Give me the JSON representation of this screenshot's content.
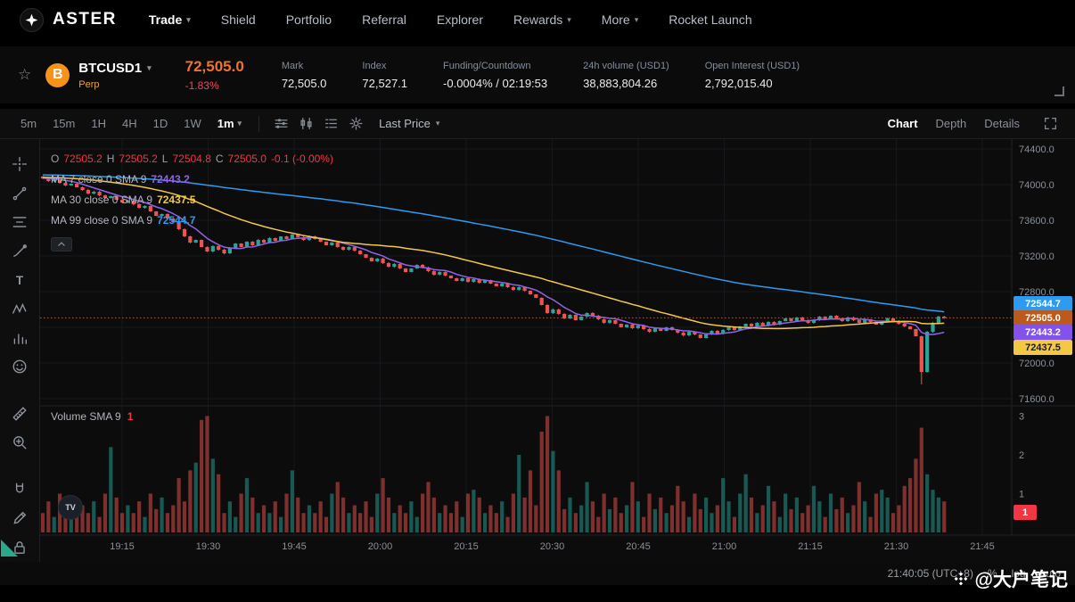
{
  "nav": {
    "brand": "ASTER",
    "items": [
      {
        "label": "Trade",
        "active": true,
        "caret": true
      },
      {
        "label": "Shield"
      },
      {
        "label": "Portfolio"
      },
      {
        "label": "Referral"
      },
      {
        "label": "Explorer"
      },
      {
        "label": "Rewards",
        "caret": true
      },
      {
        "label": "More",
        "caret": true
      },
      {
        "label": "Rocket Launch"
      }
    ]
  },
  "ticker": {
    "symbol": "BTCUSD1",
    "contract_type": "Perp",
    "last_price": "72,505.0",
    "change": "-1.83%",
    "stats": [
      {
        "label": "Mark",
        "value": "72,505.0"
      },
      {
        "label": "Index",
        "value": "72,527.1"
      },
      {
        "label": "Funding/Countdown",
        "value": "-0.0004% / 02:19:53"
      },
      {
        "label": "24h volume (USD1)",
        "value": "38,883,804.26"
      },
      {
        "label": "Open Interest (USD1)",
        "value": "2,792,015.40"
      }
    ]
  },
  "toolbar": {
    "timeframes": [
      "5m",
      "15m",
      "1H",
      "4H",
      "1D",
      "1W"
    ],
    "active_timeframe": "1m",
    "price_mode": "Last Price",
    "views": [
      "Chart",
      "Depth",
      "Details"
    ],
    "active_view": "Chart"
  },
  "tools": {
    "groups": [
      [
        "crosshair",
        "trendline",
        "fib-retracement",
        "brush",
        "text",
        "pattern",
        "forecast",
        "emoji"
      ],
      [
        "ruler",
        "zoom-in"
      ],
      [
        "magnet",
        "draw",
        "lock"
      ]
    ]
  },
  "legend": {
    "ohlc": [
      {
        "k": "O",
        "v": "72505.2"
      },
      {
        "k": "H",
        "v": "72505.2"
      },
      {
        "k": "L",
        "v": "72504.8"
      },
      {
        "k": "C",
        "v": "72505.0"
      }
    ],
    "change": "-0.1 (-0.00%)",
    "mas": [
      {
        "label": "MA 7 close 0 SMA 9",
        "value": "72443.2",
        "color": "#8e63e8"
      },
      {
        "label": "MA 30 close 0 SMA 9",
        "value": "72437.5",
        "color": "#f3c846"
      },
      {
        "label": "MA 99 close 0 SMA 9",
        "value": "72544.7",
        "color": "#2d9bf0"
      }
    ]
  },
  "volume_legend": {
    "label": "Volume SMA 9",
    "value": "1"
  },
  "axis": {
    "price_chips": [
      {
        "value": "72544.7",
        "color": "#2d9bf0",
        "text": "#ffffff"
      },
      {
        "value": "72505.0",
        "color": "#bb5a1f",
        "text": "#ffffff"
      },
      {
        "value": "72443.2",
        "color": "#8153e8",
        "text": "#ffffff"
      },
      {
        "value": "72437.5",
        "color": "#f3c846",
        "text": "#1b1b1b"
      }
    ],
    "volume_chip": {
      "value": "1"
    }
  },
  "footer": {
    "clock": "21:40:05 (UTC+8)",
    "percent": "%",
    "log": "log",
    "auto": "auto"
  },
  "watermark": {
    "text": "@大户笔记"
  },
  "chart_data": {
    "type": "candlestick",
    "symbol": "BTCUSD1",
    "interval": "1m",
    "time_start": "19:01",
    "time_end": "21:40",
    "last_price": 72505.0,
    "first_open": 74090,
    "up_color": "#26a69a",
    "down_color": "#ef5350",
    "ma_periods": [
      7,
      30,
      99
    ],
    "ma_colors": {
      "ma7": "#8e63e8",
      "ma30": "#f3c846",
      "ma99": "#2d9bf0"
    },
    "price_ticks": [
      74400,
      74000,
      73600,
      73200,
      72800,
      72400,
      72000,
      71600
    ],
    "volume_ticks": [
      3,
      2,
      1
    ],
    "time_ticks": [
      "19:15",
      "19:30",
      "19:45",
      "20:00",
      "20:15",
      "20:30",
      "20:45",
      "21:00",
      "21:15",
      "21:30",
      "21:45"
    ],
    "wick_low_overrides": {
      "155": 71760
    },
    "closes": [
      74070,
      74040,
      74060,
      74020,
      73990,
      74010,
      73970,
      73940,
      73900,
      73920,
      73880,
      73850,
      73870,
      73830,
      73800,
      73820,
      73780,
      73740,
      73760,
      73700,
      73650,
      73670,
      73620,
      73580,
      73500,
      73420,
      73350,
      73380,
      73300,
      73250,
      73310,
      73270,
      73230,
      73290,
      73340,
      73300,
      73360,
      73320,
      73380,
      73350,
      73400,
      73370,
      73420,
      73390,
      73440,
      73410,
      73380,
      73420,
      73390,
      73360,
      73320,
      73350,
      73300,
      73270,
      73300,
      73260,
      73220,
      73180,
      73140,
      73170,
      73120,
      73080,
      73110,
      73060,
      73020,
      73060,
      73100,
      73070,
      73030,
      72990,
      73020,
      72980,
      72950,
      72920,
      72950,
      72910,
      72940,
      72900,
      72930,
      72890,
      72860,
      72890,
      72850,
      72820,
      72850,
      72810,
      72770,
      72730,
      72650,
      72560,
      72600,
      72550,
      72500,
      72540,
      72480,
      72520,
      72560,
      72530,
      72490,
      72450,
      72480,
      72440,
      72400,
      72430,
      72390,
      72420,
      72380,
      72350,
      72390,
      72360,
      72400,
      72370,
      72340,
      72310,
      72350,
      72320,
      72280,
      72320,
      72360,
      72330,
      72370,
      72400,
      72370,
      72410,
      72440,
      72410,
      72450,
      72420,
      72460,
      72430,
      72470,
      72500,
      72470,
      72510,
      72480,
      72450,
      72480,
      72520,
      72490,
      72530,
      72500,
      72470,
      72510,
      72480,
      72450,
      72490,
      72460,
      72430,
      72460,
      72500,
      72470,
      72440,
      72410,
      72380,
      72300,
      71900,
      72350,
      72450,
      72520,
      72505
    ],
    "volumes": [
      0.5,
      0.8,
      0.4,
      1.0,
      0.6,
      0.9,
      0.5,
      0.7,
      0.5,
      0.8,
      0.4,
      1.0,
      2.2,
      0.9,
      0.5,
      0.7,
      0.5,
      0.8,
      0.4,
      1.0,
      0.6,
      0.9,
      0.5,
      0.7,
      1.4,
      0.8,
      1.6,
      1.8,
      2.9,
      3.0,
      1.9,
      1.5,
      0.5,
      0.8,
      0.4,
      1.0,
      1.4,
      0.9,
      0.5,
      0.7,
      0.5,
      0.8,
      0.4,
      1.0,
      1.6,
      0.9,
      0.5,
      0.7,
      0.5,
      0.8,
      0.4,
      1.0,
      1.3,
      0.9,
      0.5,
      0.7,
      0.5,
      0.8,
      0.4,
      1.0,
      1.4,
      0.9,
      0.5,
      0.7,
      0.5,
      0.8,
      0.4,
      1.0,
      1.3,
      0.9,
      0.5,
      0.7,
      0.5,
      0.8,
      0.4,
      1.0,
      1.1,
      0.9,
      0.5,
      0.7,
      0.5,
      0.8,
      0.4,
      1.0,
      2.0,
      0.9,
      1.6,
      0.7,
      2.6,
      3.0,
      2.1,
      1.6,
      0.6,
      0.9,
      0.5,
      0.7,
      1.3,
      0.8,
      0.4,
      1.0,
      0.6,
      0.9,
      0.5,
      0.7,
      1.3,
      0.8,
      0.4,
      1.0,
      0.6,
      0.9,
      0.5,
      0.7,
      1.2,
      0.8,
      0.4,
      1.0,
      0.6,
      0.9,
      0.5,
      0.7,
      1.4,
      0.8,
      0.4,
      1.0,
      1.5,
      0.9,
      0.5,
      0.7,
      1.2,
      0.8,
      0.4,
      1.0,
      0.6,
      0.9,
      0.5,
      0.7,
      1.2,
      0.8,
      0.4,
      1.0,
      0.6,
      0.9,
      0.5,
      0.7,
      1.3,
      0.8,
      0.4,
      1.0,
      1.1,
      0.9,
      0.5,
      0.7,
      1.2,
      1.4,
      1.9,
      2.7,
      1.5,
      1.1,
      0.9,
      0.8
    ]
  }
}
